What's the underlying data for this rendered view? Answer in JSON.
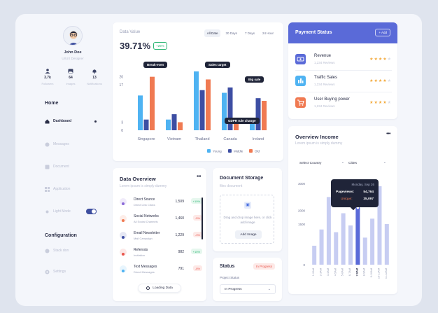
{
  "profile": {
    "name": "John Doe",
    "role": "UI/UX Designer",
    "stats": [
      {
        "icon": "user-icon",
        "value": "3.7k",
        "label": "Followers"
      },
      {
        "icon": "image-icon",
        "value": "64",
        "label": "Images"
      },
      {
        "icon": "bell-icon",
        "value": "13",
        "label": "Notifications"
      }
    ]
  },
  "nav": {
    "home_title": "Home",
    "items": [
      {
        "label": "Dashboard",
        "icon": "home-icon",
        "active": true
      },
      {
        "label": "Messages",
        "icon": "message-icon"
      },
      {
        "label": "Document",
        "icon": "document-icon"
      },
      {
        "label": "Application",
        "icon": "grid-icon"
      },
      {
        "label": "Light Mode",
        "icon": "sun-icon",
        "toggle": true
      }
    ],
    "config_title": "Configuration",
    "config_items": [
      {
        "label": "Stack don",
        "icon": "stack-icon"
      },
      {
        "label": "Settings",
        "icon": "gear-icon"
      }
    ]
  },
  "data_value": {
    "label": "Data Value",
    "value": "39.71%",
    "change": "+25%",
    "filters": [
      "All Date",
      "30 Days",
      "7 Days",
      "24 Hour"
    ],
    "active_filter": "All Date",
    "tags": [
      "Break-even",
      "Sales target",
      "Big sale",
      "GDPR rule change"
    ]
  },
  "chart_data": {
    "type": "bar",
    "categories": [
      "Singapore",
      "Vietnam",
      "Thailand",
      "Canada",
      "Ireland"
    ],
    "y_ticks": [
      "20",
      "17",
      "3",
      "0"
    ],
    "ylim": [
      0,
      22
    ],
    "series": [
      {
        "name": "Young",
        "color": "#4fb3f2",
        "values": [
          13,
          4,
          22,
          14,
          3
        ]
      },
      {
        "name": "Middle",
        "color": "#3d4ea3",
        "values": [
          4,
          6,
          15,
          16,
          12
        ]
      },
      {
        "name": "Old",
        "color": "#f07a52",
        "values": [
          20,
          3,
          19,
          4,
          11
        ]
      }
    ],
    "legend_position": "bottom-right"
  },
  "payment": {
    "title": "Payment Status",
    "add_label": "+ Add",
    "items": [
      {
        "name": "Revenue",
        "reviews": "1,234 Reviews",
        "icon": "money-icon",
        "color": "#5a6ad8",
        "rating": 4
      },
      {
        "name": "Traffic Sales",
        "reviews": "1,234 Reviews",
        "icon": "building-icon",
        "color": "#4fb3f2",
        "rating": 4
      },
      {
        "name": "User Buying power",
        "reviews": "1,234 Reviews",
        "icon": "cart-icon",
        "color": "#f07a52",
        "rating": 4
      }
    ]
  },
  "overview_income": {
    "title": "Overview Income",
    "subtitle": "Lorem ipsum is simply dummy",
    "country_select": "Select Country",
    "cities_select": "Cities",
    "tooltip": {
      "date": "Monday, Sep 26",
      "pageviews_label": "Pageviews:",
      "pageviews": "54,764",
      "unique_label": "Unique:",
      "unique": "35,097"
    }
  },
  "income_chart": {
    "y_ticks": [
      "3000",
      "2000",
      "1500",
      "0"
    ],
    "ylim": [
      0,
      3000
    ],
    "categories": [
      "1-2AM",
      "2-3AM",
      "3-4AM",
      "4-5AM",
      "5-6AM",
      "6-7AM",
      "7-8AM",
      "8-9AM",
      "9-10AM",
      "10-11AM",
      "11-12AM"
    ],
    "highlight_index": 6,
    "values": [
      700,
      1300,
      2500,
      1200,
      1900,
      1450,
      2100,
      1000,
      1700,
      2900,
      1500
    ]
  },
  "data_overview": {
    "title": "Data Overview",
    "subtitle": "Lorem ipsum is simply dummy",
    "rows": [
      {
        "name": "Direct Source",
        "desc": "Direct Link Clicks",
        "value": "1,509",
        "pct": "+10%",
        "dir": "up",
        "icon": "link-icon",
        "color": "#8b6ad8"
      },
      {
        "name": "Social Networks",
        "desc": "All Social Channels",
        "value": "1,460",
        "pct": "-5%",
        "dir": "down",
        "icon": "share-icon",
        "color": "#f07a52"
      },
      {
        "name": "Email Newsletter",
        "desc": "Mail Campaign",
        "value": "1,229",
        "pct": "-3%",
        "dir": "down",
        "icon": "mail-icon",
        "color": "#3d4ea3"
      },
      {
        "name": "Referrals",
        "desc": "Invitation",
        "value": "982",
        "pct": "+15%",
        "dir": "up",
        "icon": "users-icon",
        "color": "#e9554b"
      },
      {
        "name": "Text Messages",
        "desc": "Direct Messages",
        "value": "791",
        "pct": "-8%",
        "dir": "down",
        "icon": "message-icon",
        "color": "#4fb3f2"
      }
    ],
    "loading_label": "Loading Data"
  },
  "document_storage": {
    "title": "Document Storage",
    "subtitle": "files document",
    "drop_text": "Drag and drop image here, or click add image",
    "add_image": "Add Image"
  },
  "status": {
    "title": "Status",
    "badge": "In Progress",
    "field_label": "Project Status",
    "field_value": "In Progress"
  }
}
